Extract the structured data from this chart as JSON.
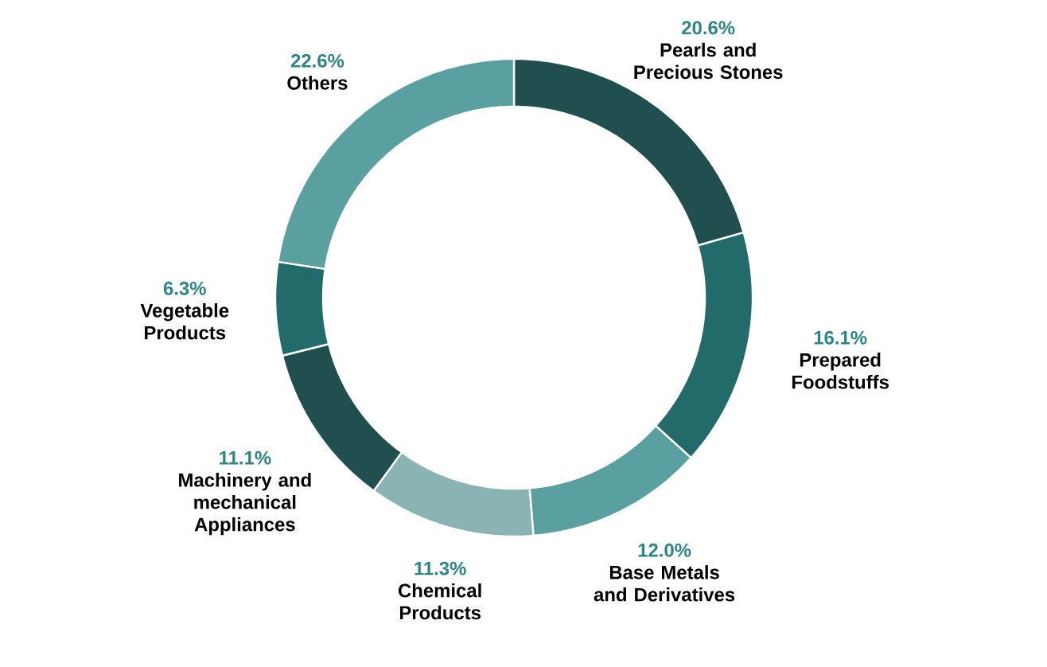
{
  "chart_data": {
    "type": "donut",
    "categories": [
      "Pearls and Precious Stones",
      "Prepared Foodstuffs",
      "Base Metals and Derivatives",
      "Chemical Products",
      "Machinery and mechanical Appliances",
      "Vegetable Products",
      "Others"
    ],
    "values": [
      20.6,
      16.1,
      12.0,
      11.3,
      11.1,
      6.3,
      22.6
    ],
    "value_labels": [
      "20.6%",
      "16.1%",
      "12.0%",
      "11.3%",
      "11.1%",
      "6.3%",
      "22.6%"
    ],
    "colors": [
      "#214f50",
      "#236b6b",
      "#5ba0a0",
      "#8ab4b4",
      "#214f50",
      "#236b6b",
      "#5ba0a0"
    ]
  }
}
